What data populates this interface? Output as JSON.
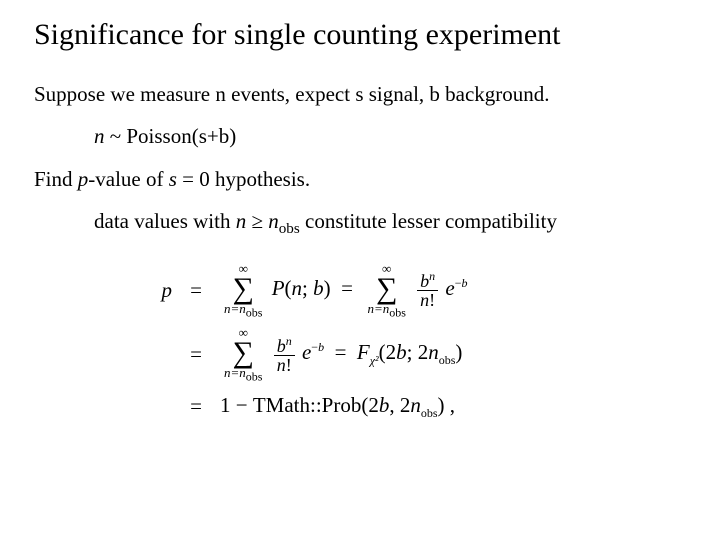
{
  "title": "Significance for single counting experiment",
  "p1_a": "Suppose we measure n events, expect s signal, b background.",
  "p2_n": "n",
  "p2_rest": " ~ Poisson(s+b)",
  "p3_a": "Find ",
  "p3_p": "p",
  "p3_b": "-value of ",
  "p3_s": "s",
  "p3_c": " = 0 hypothesis.",
  "p4_a": "data values with ",
  "p4_n": "n",
  "p4_ge": " ≥ ",
  "p4_n2": "n",
  "p4_obs": "obs",
  "p4_b": " constitute lesser compatibility",
  "eq": {
    "lhs": "p",
    "eq_sign": "=",
    "sum_top": "∞",
    "sum_bot_a": "n=n",
    "sum_bot_obs": "obs",
    "P": "P",
    "Pargs": "(n; b)",
    "frac1_num_a": "b",
    "frac1_num_exp": "n",
    "frac1_den_a": "n",
    "frac1_den_b": "!",
    "e": "e",
    "minus_b": "−b",
    "Fchi_a": "F",
    "Fchi_sub": "χ²",
    "Fchi_args_a": "(2b; 2n",
    "Fchi_args_obs": "obs",
    "Fchi_args_b": ")",
    "one_minus": "1 − ",
    "tmath": "TMath::",
    "prob": "Prob",
    "prob_args_a": "(2b, 2n",
    "prob_args_obs": "obs",
    "prob_args_b": ") ,"
  }
}
